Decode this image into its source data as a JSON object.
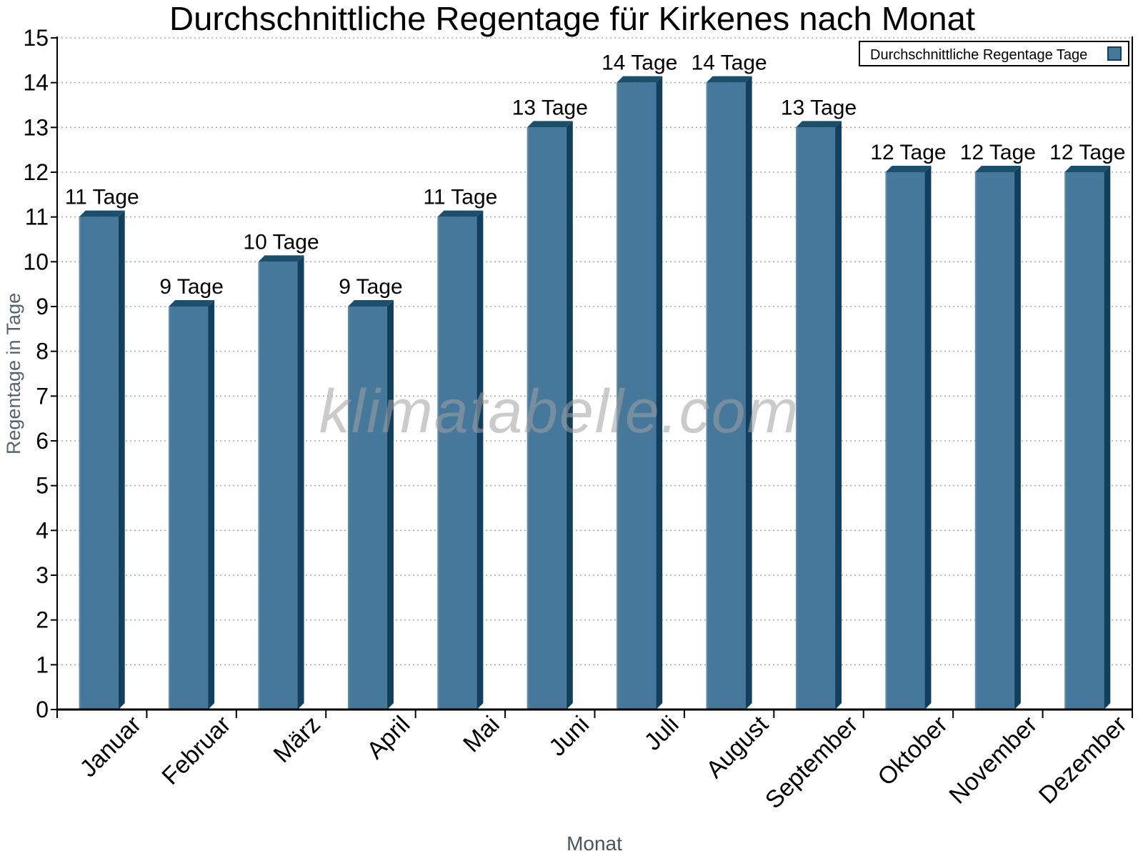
{
  "title": "Durchschnittliche Regentage für Kirkenes nach Monat",
  "watermark": "klimatabelle.com",
  "legend": {
    "label": "Durchschnittliche Regentage Tage"
  },
  "x_axis": {
    "label": "Monat"
  },
  "y_axis": {
    "label": "Regentage in Tage",
    "ticks": [
      0,
      1,
      2,
      3,
      4,
      5,
      6,
      7,
      8,
      9,
      10,
      11,
      12,
      13,
      14,
      15
    ]
  },
  "colors": {
    "bar_face": "#45789B",
    "bar_face_highlight": "#5f8cab",
    "bar_top": "#1C4F6C",
    "bar_side": "#123F5E",
    "grid": "#ababab",
    "axis": "#000000",
    "legend_border": "#000000",
    "swatch_border": "#123F5E"
  },
  "chart_data": {
    "type": "bar",
    "title": "Durchschnittliche Regentage für Kirkenes nach Monat",
    "categories": [
      "Januar",
      "Februar",
      "März",
      "April",
      "Mai",
      "Juni",
      "Juli",
      "August",
      "September",
      "Oktober",
      "November",
      "Dezember"
    ],
    "values": [
      11,
      9,
      10,
      9,
      11,
      13,
      14,
      14,
      13,
      12,
      12,
      12
    ],
    "value_labels": [
      "11 Tage",
      "9 Tage",
      "10 Tage",
      "9 Tage",
      "11 Tage",
      "13 Tage",
      "14 Tage",
      "14 Tage",
      "13 Tage",
      "12 Tage",
      "12 Tage",
      "12 Tage"
    ],
    "xlabel": "Monat",
    "ylabel": "Regentage in Tage",
    "ylim": [
      0,
      15
    ],
    "ytick_step": 1,
    "grid": "horizontal-dotted",
    "legend": "Durchschnittliche Regentage Tage",
    "legend_position": "top-right",
    "bar_style": "3d-bevel"
  }
}
